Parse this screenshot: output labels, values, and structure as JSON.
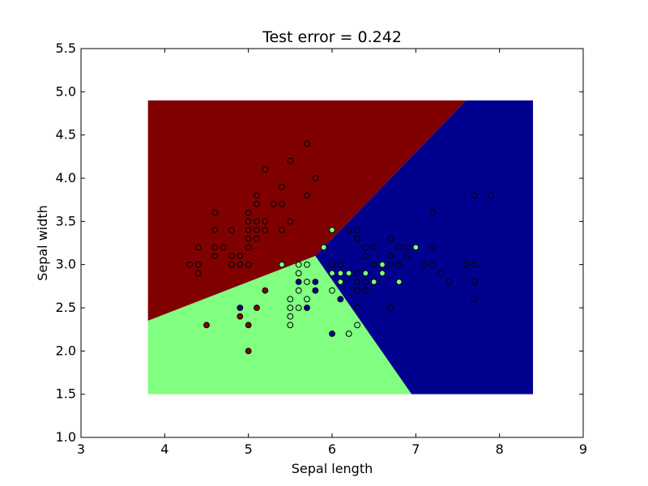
{
  "chart_data": {
    "type": "scatter",
    "title": "Test error = 0.242",
    "xlabel": "Sepal length",
    "ylabel": "Sepal width",
    "xlim": [
      3,
      9
    ],
    "ylim": [
      1.0,
      5.5
    ],
    "xticks": [
      "3",
      "4",
      "5",
      "6",
      "7",
      "8",
      "9"
    ],
    "yticks": [
      "1.0",
      "1.5",
      "2.0",
      "2.5",
      "3.0",
      "3.5",
      "4.0",
      "4.5",
      "5.0",
      "5.5"
    ],
    "grid": false,
    "decision_regions": {
      "x_range": [
        3.8,
        8.4
      ],
      "y_range": [
        1.5,
        4.9
      ],
      "colors": {
        "red": "#800000",
        "green": "#80ff80",
        "blue": "#00008f"
      },
      "boundaries": {
        "red_blue": [
          [
            5.8,
            3.1
          ],
          [
            7.6,
            4.9
          ]
        ],
        "red_green": [
          [
            3.8,
            2.35
          ],
          [
            5.8,
            3.1
          ]
        ],
        "green_blue": [
          [
            5.8,
            3.1
          ],
          [
            6.95,
            1.5
          ]
        ]
      }
    },
    "series": [
      {
        "fill": "#800000",
        "points": [
          [
            4.3,
            3.0
          ],
          [
            4.4,
            3.0
          ],
          [
            4.4,
            3.2
          ],
          [
            4.4,
            2.9
          ],
          [
            4.5,
            2.3
          ],
          [
            4.6,
            3.1
          ],
          [
            4.6,
            3.4
          ],
          [
            4.6,
            3.6
          ],
          [
            4.6,
            3.2
          ],
          [
            4.7,
            3.2
          ],
          [
            4.8,
            3.4
          ],
          [
            4.8,
            3.0
          ],
          [
            4.8,
            3.1
          ],
          [
            4.9,
            3.0
          ],
          [
            4.9,
            3.1
          ],
          [
            5.0,
            3.6
          ],
          [
            5.0,
            3.4
          ],
          [
            5.0,
            3.0
          ],
          [
            5.0,
            3.3
          ],
          [
            5.0,
            3.5
          ],
          [
            5.0,
            3.2
          ],
          [
            5.1,
            3.5
          ],
          [
            5.1,
            3.8
          ],
          [
            5.1,
            3.7
          ],
          [
            5.1,
            3.3
          ],
          [
            5.1,
            3.4
          ],
          [
            5.2,
            4.1
          ],
          [
            5.2,
            3.5
          ],
          [
            5.2,
            3.4
          ],
          [
            5.3,
            3.7
          ],
          [
            5.4,
            3.9
          ],
          [
            5.4,
            3.4
          ],
          [
            5.4,
            3.7
          ],
          [
            5.5,
            4.2
          ],
          [
            5.5,
            3.5
          ],
          [
            5.7,
            4.4
          ],
          [
            5.7,
            3.8
          ],
          [
            5.8,
            4.0
          ],
          [
            5.0,
            2.3
          ],
          [
            5.1,
            2.5
          ],
          [
            5.2,
            2.7
          ],
          [
            4.9,
            2.4
          ],
          [
            5.0,
            2.0
          ]
        ]
      },
      {
        "fill": "#80ff80",
        "points": [
          [
            5.4,
            3.0
          ],
          [
            5.9,
            3.2
          ],
          [
            6.0,
            3.4
          ],
          [
            6.0,
            2.9
          ],
          [
            6.1,
            2.8
          ],
          [
            6.1,
            2.9
          ],
          [
            6.2,
            2.9
          ],
          [
            6.3,
            3.3
          ],
          [
            6.3,
            2.3
          ],
          [
            6.4,
            2.9
          ],
          [
            6.5,
            2.8
          ],
          [
            6.6,
            3.0
          ],
          [
            6.6,
            2.9
          ],
          [
            6.7,
            3.1
          ],
          [
            6.8,
            2.8
          ],
          [
            7.0,
            3.2
          ],
          [
            5.5,
            2.3
          ],
          [
            5.5,
            2.4
          ],
          [
            5.5,
            2.5
          ],
          [
            5.5,
            2.6
          ],
          [
            5.6,
            2.5
          ],
          [
            5.6,
            2.7
          ],
          [
            5.6,
            2.9
          ],
          [
            5.6,
            3.0
          ],
          [
            5.7,
            2.6
          ],
          [
            5.7,
            2.8
          ],
          [
            5.7,
            3.0
          ],
          [
            5.8,
            2.7
          ],
          [
            6.0,
            2.7
          ],
          [
            6.2,
            2.2
          ]
        ]
      },
      {
        "fill": "#00008f",
        "points": [
          [
            4.9,
            2.5
          ],
          [
            5.6,
            2.8
          ],
          [
            5.7,
            2.5
          ],
          [
            5.8,
            2.8
          ],
          [
            5.8,
            2.7
          ],
          [
            6.0,
            2.2
          ],
          [
            6.0,
            3.0
          ],
          [
            6.1,
            3.0
          ],
          [
            6.1,
            2.6
          ],
          [
            6.2,
            3.4
          ],
          [
            6.3,
            3.4
          ],
          [
            6.3,
            2.5
          ],
          [
            6.3,
            2.7
          ],
          [
            6.3,
            2.8
          ],
          [
            6.3,
            2.9
          ],
          [
            6.3,
            3.3
          ],
          [
            6.4,
            3.1
          ],
          [
            6.4,
            3.2
          ],
          [
            6.4,
            2.8
          ],
          [
            6.4,
            2.7
          ],
          [
            6.5,
            3.0
          ],
          [
            6.5,
            3.2
          ],
          [
            6.5,
            3.0
          ],
          [
            6.7,
            3.3
          ],
          [
            6.7,
            3.0
          ],
          [
            6.7,
            2.5
          ],
          [
            6.7,
            3.1
          ],
          [
            6.8,
            3.0
          ],
          [
            6.8,
            3.2
          ],
          [
            6.9,
            3.1
          ],
          [
            6.9,
            3.2
          ],
          [
            7.1,
            3.0
          ],
          [
            7.2,
            3.6
          ],
          [
            7.2,
            3.2
          ],
          [
            7.2,
            3.0
          ],
          [
            7.3,
            2.9
          ],
          [
            7.4,
            2.8
          ],
          [
            7.6,
            3.0
          ],
          [
            7.7,
            3.8
          ],
          [
            7.7,
            2.6
          ],
          [
            7.7,
            2.8
          ],
          [
            7.7,
            3.0
          ],
          [
            7.9,
            3.8
          ]
        ]
      }
    ]
  }
}
